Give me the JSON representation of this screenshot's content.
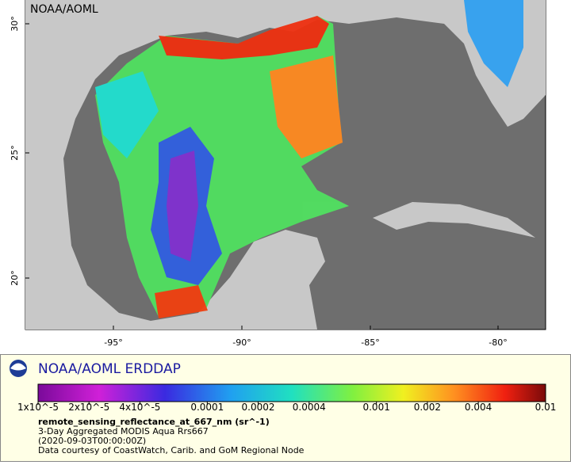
{
  "map": {
    "watermark": "NOAA/AOML",
    "y_ticks": [
      "30°",
      "25°",
      "20°"
    ],
    "x_ticks": [
      "-95°",
      "-90°",
      "-85°",
      "-80°"
    ]
  },
  "legend": {
    "brand": "NOAA/AOML ERDDAP",
    "scale_labels": [
      "1x10^-5",
      "2x10^-5",
      "4x10^-5",
      "0.0001",
      "0.0002",
      "0.0004",
      "0.001",
      "0.002",
      "0.004",
      "0.01"
    ],
    "variable": "remote_sensing_reflectance_at_667_nm (sr^-1)",
    "dataset": "3-Day Aggregated MODIS Aqua Rrs667",
    "time": "(2020-09-03T00:00:00Z)",
    "credit": "Data courtesy of CoastWatch, Carib. and GoM Regional Node"
  }
}
